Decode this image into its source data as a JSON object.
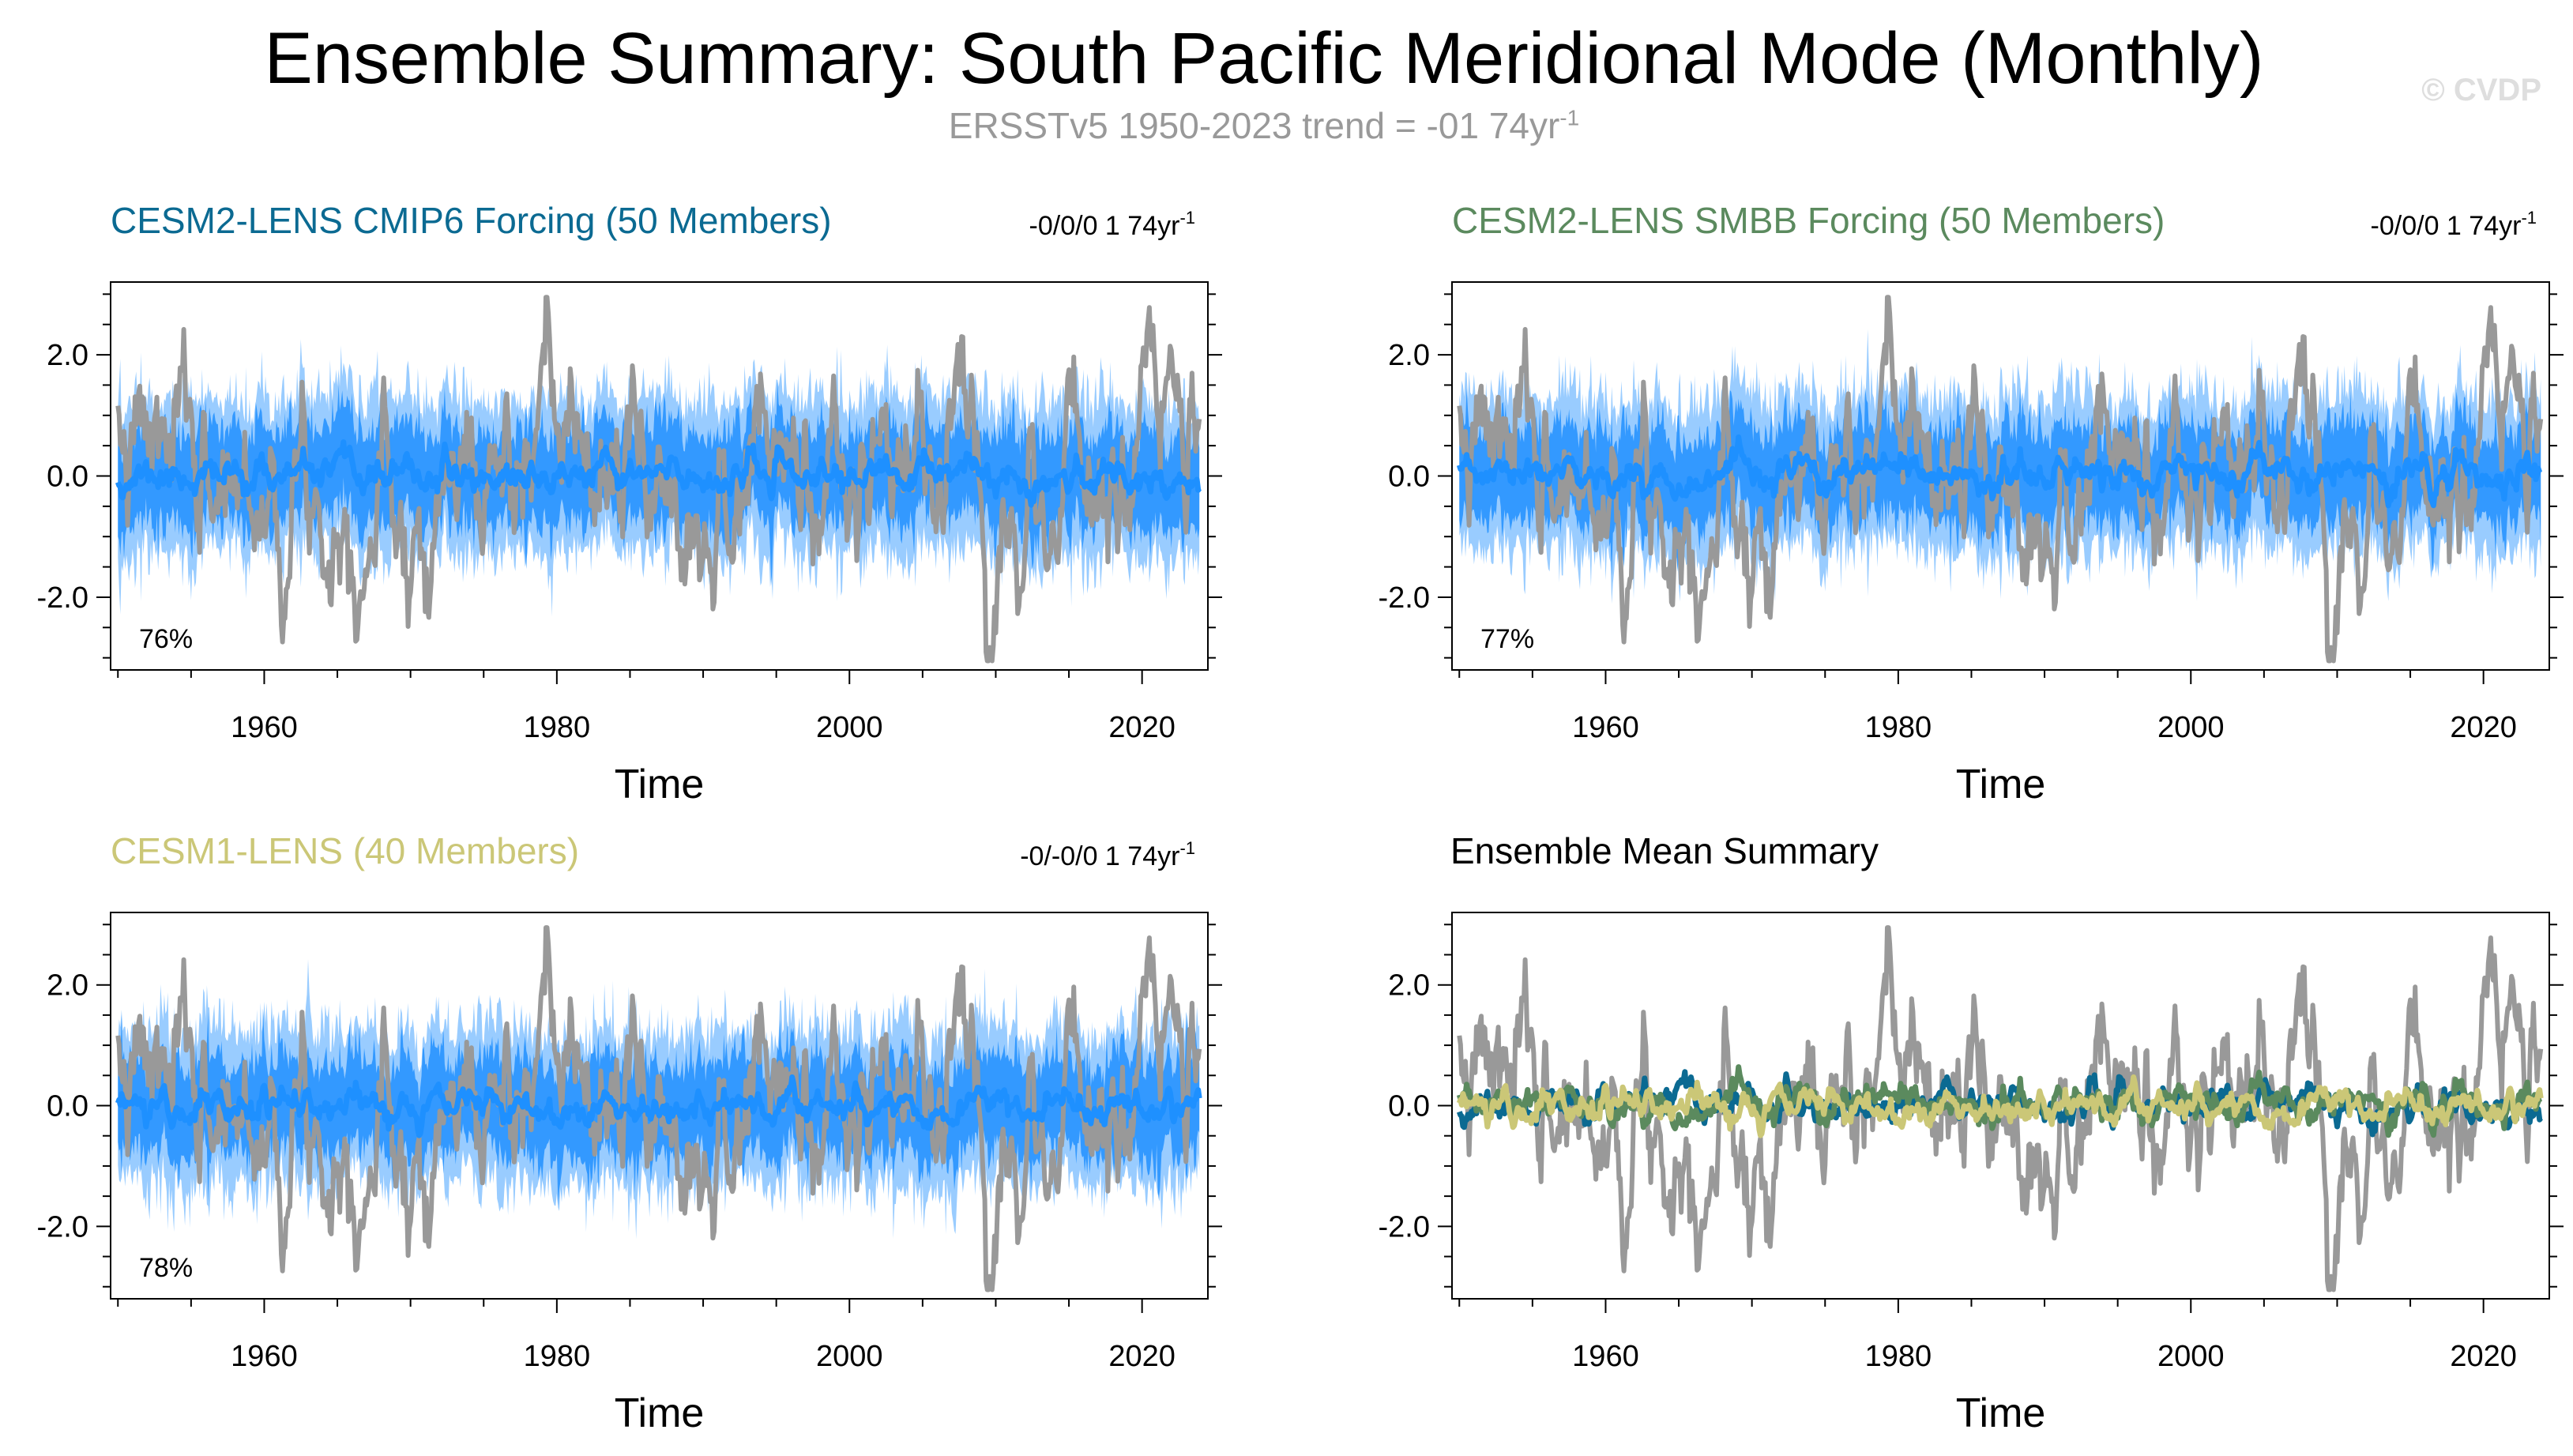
{
  "header": {
    "title": "Ensemble Summary: South Pacific Meridional Mode (Monthly)",
    "subtitle_text": "ERSSTv5 1950-2023 trend = -01 74yr",
    "subtitle_exp": "-1",
    "watermark": "© CVDP"
  },
  "colors": {
    "observed": "#999999",
    "band_outer": "#99ccff",
    "band_inner": "#3399ff",
    "ens_mean": "#1e90ff",
    "cmip6": "#0b6a92",
    "smbb": "#5b8a5e",
    "cesm1": "#cbc777"
  },
  "chart_data": [
    {
      "type": "line",
      "title": "CESM2-LENS CMIP6 Forcing (50 Members)",
      "title_color": "#0b6a92",
      "trend": "-0/0/0 1 74yr",
      "trend_exp": "-1",
      "percent_label": "76%",
      "xlabel": "Time",
      "ylabel": "",
      "xlim": [
        1949.5,
        2024.5
      ],
      "ylim": [
        -3.2,
        3.2
      ],
      "x_ticks": [
        1960,
        1980,
        2000,
        2020
      ],
      "y_ticks": [
        -2.0,
        0.0,
        2.0
      ],
      "y_tick_labels": [
        "-2.0",
        "0.0",
        "2.0"
      ],
      "series": [
        {
          "name": "ERSSTv5 observed",
          "style": "gray line",
          "seed": 7
        },
        {
          "name": "Ensemble 10-90% range",
          "style": "light blue band",
          "seed": 11
        },
        {
          "name": "Ensemble 25-75% range",
          "style": "blue band",
          "seed": 11
        },
        {
          "name": "Ensemble mean",
          "style": "blue line",
          "seed": 11
        }
      ]
    },
    {
      "type": "line",
      "title": "CESM2-LENS SMBB Forcing (50 Members)",
      "title_color": "#5b8a5e",
      "trend": "-0/0/0 1 74yr",
      "trend_exp": "-1",
      "percent_label": "77%",
      "xlabel": "Time",
      "ylabel": "",
      "xlim": [
        1949.5,
        2024.5
      ],
      "ylim": [
        -3.2,
        3.2
      ],
      "x_ticks": [
        1960,
        1980,
        2000,
        2020
      ],
      "y_ticks": [
        -2.0,
        0.0,
        2.0
      ],
      "y_tick_labels": [
        "-2.0",
        "0.0",
        "2.0"
      ],
      "series": [
        {
          "name": "ERSSTv5 observed",
          "style": "gray line",
          "seed": 7
        },
        {
          "name": "Ensemble 10-90% range",
          "style": "light blue band",
          "seed": 23
        },
        {
          "name": "Ensemble 25-75% range",
          "style": "blue band",
          "seed": 23
        },
        {
          "name": "Ensemble mean",
          "style": "blue line",
          "seed": 23
        }
      ]
    },
    {
      "type": "line",
      "title": "CESM1-LENS (40 Members)",
      "title_color": "#cbc777",
      "trend": "-0/-0/0 1 74yr",
      "trend_exp": "-1",
      "percent_label": "78%",
      "xlabel": "Time",
      "ylabel": "",
      "xlim": [
        1949.5,
        2024.5
      ],
      "ylim": [
        -3.2,
        3.2
      ],
      "x_ticks": [
        1960,
        1980,
        2000,
        2020
      ],
      "y_ticks": [
        -2.0,
        0.0,
        2.0
      ],
      "y_tick_labels": [
        "-2.0",
        "0.0",
        "2.0"
      ],
      "series": [
        {
          "name": "ERSSTv5 observed",
          "style": "gray line",
          "seed": 7
        },
        {
          "name": "Ensemble 10-90% range",
          "style": "light blue band",
          "seed": 31
        },
        {
          "name": "Ensemble 25-75% range",
          "style": "blue band",
          "seed": 31
        },
        {
          "name": "Ensemble mean",
          "style": "blue line",
          "seed": 31
        }
      ]
    },
    {
      "type": "line",
      "title": "Ensemble Mean Summary",
      "title_color": "#000000",
      "trend": "",
      "trend_exp": "",
      "percent_label": "",
      "xlabel": "Time",
      "ylabel": "",
      "xlim": [
        1949.5,
        2024.5
      ],
      "ylim": [
        -3.2,
        3.2
      ],
      "x_ticks": [
        1960,
        1980,
        2000,
        2020
      ],
      "y_ticks": [
        -2.0,
        0.0,
        2.0
      ],
      "y_tick_labels": [
        "-2.0",
        "0.0",
        "2.0"
      ],
      "series": [
        {
          "name": "ERSSTv5 observed",
          "style": "gray line",
          "seed": 7
        },
        {
          "name": "CESM2-LENS CMIP6 Forcing ensemble mean",
          "style": "cmip6 line",
          "seed": 11
        },
        {
          "name": "CESM2-LENS SMBB Forcing ensemble mean",
          "style": "smbb line",
          "seed": 23
        },
        {
          "name": "CESM1-LENS ensemble mean",
          "style": "cesm1 line",
          "seed": 31
        }
      ]
    }
  ]
}
